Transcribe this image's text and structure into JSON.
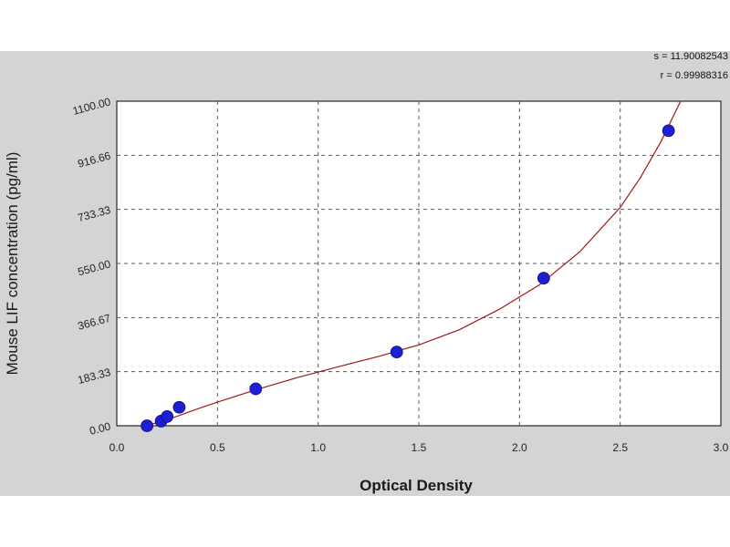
{
  "chart_data": {
    "type": "scatter",
    "title": "",
    "xlabel": "Optical Density",
    "ylabel": "Mouse LIF concentration (pg/ml)",
    "xlim": [
      0.0,
      3.0
    ],
    "ylim": [
      0.0,
      1100.0
    ],
    "x_ticks": [
      "0.0",
      "0.5",
      "1.0",
      "1.5",
      "2.0",
      "2.5",
      "3.0"
    ],
    "y_ticks": [
      "0.00",
      "183.33",
      "366.67",
      "550.00",
      "733.33",
      "916.66",
      "1100.00"
    ],
    "grid": true,
    "stats": [
      "s = 11.90082543",
      "r = 0.99988316"
    ],
    "points": [
      {
        "x": 0.15,
        "y": 0
      },
      {
        "x": 0.22,
        "y": 15.6
      },
      {
        "x": 0.25,
        "y": 31.2
      },
      {
        "x": 0.31,
        "y": 62.5
      },
      {
        "x": 0.69,
        "y": 125
      },
      {
        "x": 1.39,
        "y": 250
      },
      {
        "x": 2.12,
        "y": 500
      },
      {
        "x": 2.74,
        "y": 1000
      }
    ],
    "fit_curve": {
      "x": [
        0.13,
        0.2,
        0.3,
        0.4,
        0.5,
        0.7,
        0.9,
        1.1,
        1.3,
        1.5,
        1.7,
        1.9,
        2.1,
        2.3,
        2.5,
        2.6,
        2.7,
        2.8
      ],
      "y": [
        0,
        10,
        32,
        57,
        80,
        124,
        164,
        200,
        235,
        274,
        325,
        395,
        478,
        590,
        740,
        840,
        960,
        1100
      ]
    },
    "colors": {
      "point": "#1e1ed2",
      "curve": "#a01818",
      "grid": "#555555",
      "plot_bg": "#ffffff",
      "frame_bg": "#d4d4d4"
    }
  }
}
